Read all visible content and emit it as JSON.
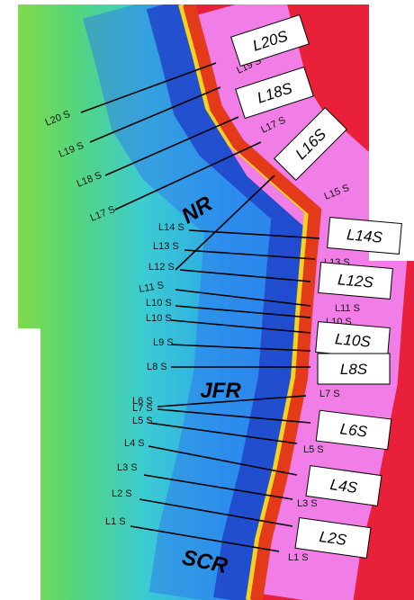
{
  "map": {
    "regions": [
      "NR",
      "JFR",
      "SCR"
    ],
    "line_labels_start": [
      "L20 S",
      "L19 S",
      "L18 S",
      "L17 S",
      "L14 S",
      "L13 S",
      "L12 S",
      "L11 S",
      "L10 S",
      "L10 S",
      "L9 S",
      "L8 S",
      "L6 S",
      "L7 S",
      "L5 S",
      "L4 S",
      "L3 S",
      "L2 S",
      "L1 S"
    ],
    "line_labels_end": [
      "L19 S",
      "L17 S",
      "L15 S",
      "L13 S",
      "L11 S",
      "L10 S",
      "L7 S",
      "L5 S",
      "L3 S",
      "L1 S"
    ],
    "boxes": [
      "L20S",
      "L18S",
      "L16S",
      "L14S",
      "L12S",
      "L10S",
      "L8S",
      "L6S",
      "L4S",
      "L2S"
    ]
  }
}
